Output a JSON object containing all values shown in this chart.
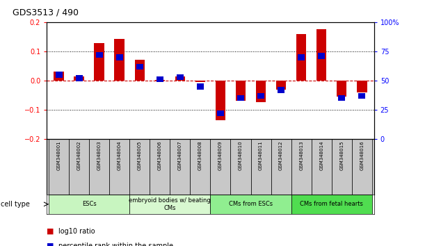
{
  "title": "GDS3513 / 490",
  "samples": [
    "GSM348001",
    "GSM348002",
    "GSM348003",
    "GSM348004",
    "GSM348005",
    "GSM348006",
    "GSM348007",
    "GSM348008",
    "GSM348009",
    "GSM348010",
    "GSM348011",
    "GSM348012",
    "GSM348013",
    "GSM348014",
    "GSM348015",
    "GSM348016"
  ],
  "log10_ratio": [
    0.03,
    0.015,
    0.128,
    0.142,
    0.072,
    0.003,
    0.015,
    -0.005,
    -0.135,
    -0.07,
    -0.075,
    -0.03,
    0.16,
    0.175,
    -0.055,
    -0.04
  ],
  "percentile_rank": [
    55,
    52,
    72,
    70,
    62,
    51,
    53,
    45,
    22,
    35,
    37,
    42,
    70,
    71,
    35,
    37
  ],
  "ylim": [
    -0.2,
    0.2
  ],
  "right_ylim": [
    0,
    100
  ],
  "right_yticks": [
    0,
    25,
    50,
    75,
    100
  ],
  "right_yticklabels": [
    "0",
    "25",
    "50",
    "75",
    "100%"
  ],
  "left_yticks": [
    -0.2,
    -0.1,
    0.0,
    0.1,
    0.2
  ],
  "dotted_line_y": [
    -0.1,
    0.1
  ],
  "cell_groups": [
    {
      "label": "ESCs",
      "start": 0,
      "end": 3,
      "color": "#c8f5c0"
    },
    {
      "label": "embryoid bodies w/ beating\nCMs",
      "start": 4,
      "end": 7,
      "color": "#d8f8d0"
    },
    {
      "label": "CMs from ESCs",
      "start": 8,
      "end": 11,
      "color": "#90ee90"
    },
    {
      "label": "CMs from fetal hearts",
      "start": 12,
      "end": 15,
      "color": "#50dd50"
    }
  ],
  "bar_color_red": "#CC0000",
  "bar_color_blue": "#0000CC",
  "background_color": "#FFFFFF",
  "cell_type_label": "cell type",
  "legend_items": [
    {
      "label": "log10 ratio",
      "color": "#CC0000"
    },
    {
      "label": "percentile rank within the sample",
      "color": "#0000CC"
    }
  ]
}
